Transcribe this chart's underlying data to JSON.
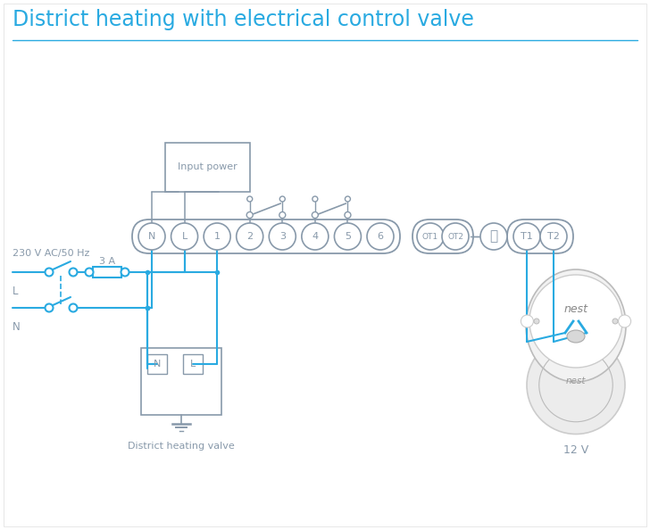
{
  "title": "District heating with electrical control valve",
  "title_color": "#29aae1",
  "bg_color": "#ffffff",
  "line_color": "#29aae1",
  "gray_color": "#8899aa",
  "label_230v": "230 V AC/50 Hz",
  "label_L": "L",
  "label_N": "N",
  "label_3A": "3 A",
  "label_input_power": "Input power",
  "label_valve": "District heating valve",
  "label_12v": "12 V",
  "label_nest": "nest"
}
